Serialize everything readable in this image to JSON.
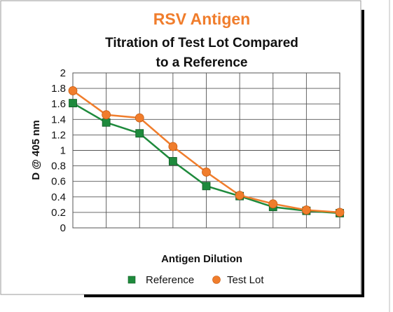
{
  "chart_data": {
    "type": "line",
    "supertitle": "RSV Antigen",
    "title_lines": [
      "Titration of Test Lot Compared",
      "to a Reference"
    ],
    "xlabel": "Antigen Dilution",
    "ylabel": "D @ 405 nm",
    "ylim": [
      0,
      2
    ],
    "yticks": [
      "0",
      "0.2",
      "0.4",
      "0.6",
      "0.8",
      "1",
      "1.2",
      "1.4",
      "1.6",
      "1.8",
      "2"
    ],
    "x": [
      1,
      2,
      3,
      4,
      5,
      6,
      7,
      8,
      9
    ],
    "xlim": [
      1,
      9
    ],
    "grid": true,
    "legend_position": "bottom",
    "series": [
      {
        "name": "Reference",
        "color": "#1e8a3c",
        "marker": "square",
        "values": [
          1.61,
          1.36,
          1.22,
          0.86,
          0.54,
          0.41,
          0.27,
          0.22,
          0.19
        ]
      },
      {
        "name": "Test Lot",
        "color": "#f07d2c",
        "marker": "circle",
        "values": [
          1.77,
          1.46,
          1.42,
          1.05,
          0.72,
          0.42,
          0.31,
          0.23,
          0.2
        ]
      }
    ]
  }
}
